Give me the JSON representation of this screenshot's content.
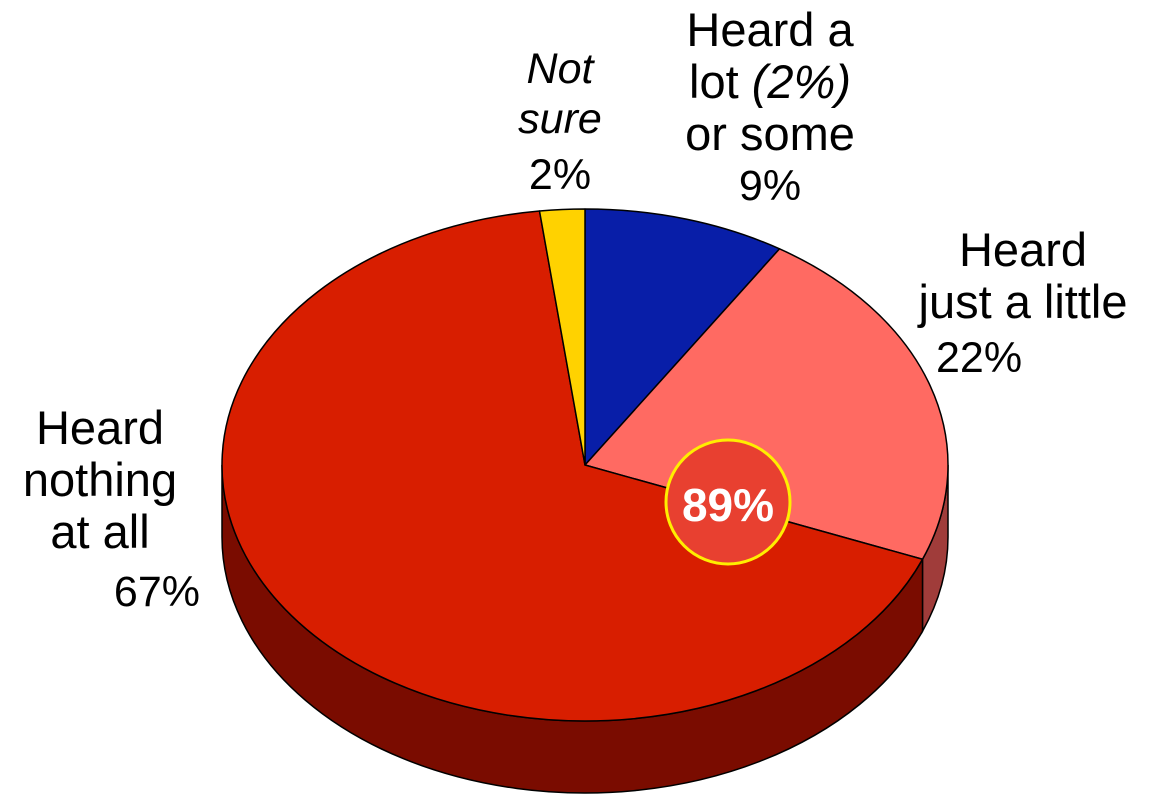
{
  "chart_data": {
    "type": "pie",
    "style": "3d",
    "categories": [
      "Heard a lot (2%) or some",
      "Heard just a little",
      "Heard nothing at all",
      "Not sure"
    ],
    "values": [
      9,
      22,
      67,
      2
    ],
    "labels": [
      {
        "lines": [
          "Heard a",
          "lot",
          "(2%)",
          "or some"
        ],
        "value_text": "9%"
      },
      {
        "lines": [
          "Heard",
          "just a little"
        ],
        "value_text": "22%"
      },
      {
        "lines": [
          "Heard",
          "nothing",
          "at all"
        ],
        "value_text": "67%"
      },
      {
        "lines": [
          "Not",
          "sure"
        ],
        "value_text": "2%"
      }
    ],
    "colors": {
      "heard_a_lot_or_some": "#081ea8",
      "heard_just_a_little": "#ff6a62",
      "heard_nothing_at_all": "#d81e00",
      "not_sure": "#ffd200",
      "side_dark": "#7a0c00",
      "side_pink": "#a03c3a",
      "highlight_fill": "#e84030",
      "highlight_ring": "#ffee00"
    },
    "highlight": {
      "text": "89%",
      "value": 89
    },
    "legend": "none"
  }
}
